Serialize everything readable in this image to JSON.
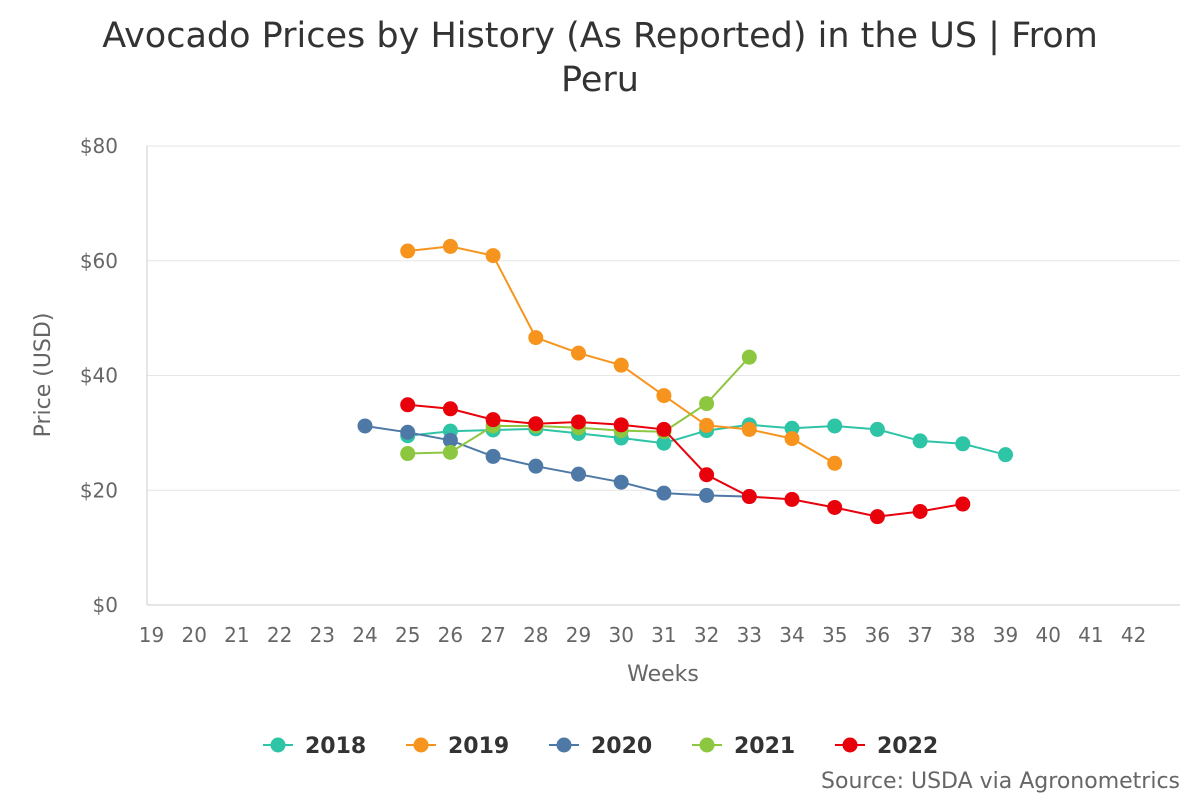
{
  "chart_data": {
    "type": "line",
    "title": "Avocado Prices by History (As Reported) in the US | From Peru",
    "xlabel": "Weeks",
    "ylabel": "Price (USD)",
    "xlim": [
      19,
      42
    ],
    "ylim": [
      0,
      80
    ],
    "x_ticks": [
      19,
      20,
      21,
      22,
      23,
      24,
      25,
      26,
      27,
      28,
      29,
      30,
      31,
      32,
      33,
      34,
      35,
      36,
      37,
      38,
      39,
      40,
      41,
      42
    ],
    "y_ticks": [
      {
        "value": 0,
        "label": "$0"
      },
      {
        "value": 20,
        "label": "$20"
      },
      {
        "value": 40,
        "label": "$40"
      },
      {
        "value": 60,
        "label": "$60"
      },
      {
        "value": 80,
        "label": "$80"
      }
    ],
    "grid": true,
    "legend_position": "bottom-center",
    "credit": "Source: USDA via Agronometrics",
    "series": [
      {
        "name": "2018",
        "color": "#2ec4a6",
        "x": [
          25,
          26,
          27,
          28,
          29,
          30,
          31,
          32,
          33,
          34,
          35,
          36,
          37,
          38,
          39
        ],
        "values": [
          29.5,
          30.3,
          30.5,
          30.7,
          29.9,
          29.1,
          28.2,
          30.4,
          31.4,
          30.8,
          31.2,
          30.6,
          28.6,
          28.1,
          26.2
        ]
      },
      {
        "name": "2019",
        "color": "#f7941d",
        "x": [
          25,
          26,
          27,
          28,
          29,
          30,
          31,
          32,
          33,
          34,
          35
        ],
        "values": [
          61.7,
          62.5,
          60.9,
          46.6,
          43.9,
          41.8,
          36.5,
          31.3,
          30.6,
          29.0,
          24.7
        ]
      },
      {
        "name": "2020",
        "color": "#4e79a7",
        "x": [
          24,
          25,
          26,
          27,
          28,
          29,
          30,
          31,
          32,
          33
        ],
        "values": [
          31.2,
          30.1,
          28.7,
          25.9,
          24.2,
          22.8,
          21.4,
          19.5,
          19.1,
          18.9
        ]
      },
      {
        "name": "2021",
        "color": "#8dc63f",
        "x": [
          25,
          26,
          27,
          28,
          29,
          30,
          31,
          32,
          33
        ],
        "values": [
          26.4,
          26.6,
          31.2,
          31.2,
          30.9,
          30.4,
          30.2,
          35.1,
          43.2
        ]
      },
      {
        "name": "2022",
        "color": "#e8000b",
        "x": [
          25,
          26,
          27,
          28,
          29,
          30,
          31,
          32,
          33,
          34,
          35,
          36,
          37,
          38
        ],
        "values": [
          34.9,
          34.2,
          32.3,
          31.6,
          31.9,
          31.4,
          30.6,
          22.7,
          18.9,
          18.4,
          17.0,
          15.4,
          16.3,
          17.6
        ]
      }
    ]
  }
}
